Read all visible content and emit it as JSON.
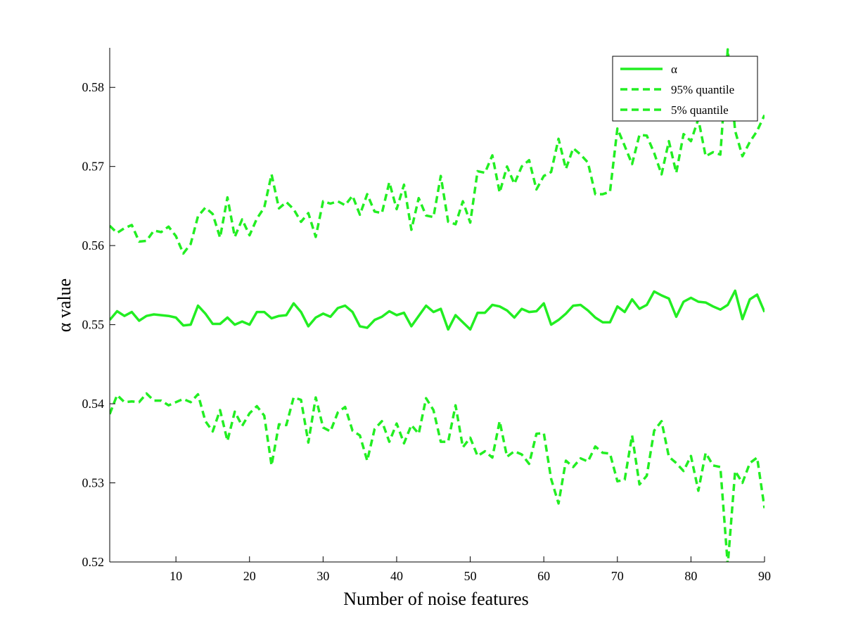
{
  "chart_data": {
    "type": "line",
    "xlabel": "Number of noise features",
    "ylabel": "α value",
    "xlim": [
      1,
      90
    ],
    "ylim": [
      0.52,
      0.585
    ],
    "xticks": [
      10,
      20,
      30,
      40,
      50,
      60,
      70,
      80,
      90
    ],
    "yticks": [
      0.52,
      0.53,
      0.54,
      0.55,
      0.56,
      0.57,
      0.58
    ],
    "grid": false,
    "legend_position": "top-right",
    "colors": {
      "series": "#22ee22"
    },
    "series": [
      {
        "name": "α",
        "style": "solid",
        "values": [
          0.5506,
          0.5517,
          0.5511,
          0.5516,
          0.5505,
          0.5511,
          0.5513,
          0.5512,
          0.5511,
          0.5509,
          0.5499,
          0.55,
          0.5524,
          0.5514,
          0.5501,
          0.5501,
          0.5509,
          0.55,
          0.5504,
          0.55,
          0.5516,
          0.5516,
          0.5508,
          0.5511,
          0.5512,
          0.5527,
          0.5516,
          0.5498,
          0.5509,
          0.5514,
          0.551,
          0.5521,
          0.5524,
          0.5516,
          0.5498,
          0.5496,
          0.5506,
          0.551,
          0.5517,
          0.5512,
          0.5515,
          0.5498,
          0.5511,
          0.5524,
          0.5516,
          0.552,
          0.5494,
          0.5512,
          0.5503,
          0.5494,
          0.5515,
          0.5515,
          0.5525,
          0.5523,
          0.5518,
          0.5509,
          0.552,
          0.5516,
          0.5517,
          0.5527,
          0.55,
          0.5506,
          0.5514,
          0.5524,
          0.5525,
          0.5518,
          0.5509,
          0.5503,
          0.5503,
          0.5523,
          0.5516,
          0.5532,
          0.552,
          0.5525,
          0.5542,
          0.5537,
          0.5533,
          0.551,
          0.5529,
          0.5534,
          0.5529,
          0.5528,
          0.5523,
          0.5519,
          0.5525,
          0.5543,
          0.5507,
          0.5532,
          0.5538,
          0.5516
        ]
      },
      {
        "name": "95% quantile",
        "style": "dashed",
        "values": [
          0.5625,
          0.5616,
          0.5622,
          0.5626,
          0.5605,
          0.5606,
          0.5619,
          0.5617,
          0.5624,
          0.5612,
          0.559,
          0.5602,
          0.5637,
          0.5648,
          0.564,
          0.561,
          0.5661,
          0.5611,
          0.5633,
          0.5613,
          0.5634,
          0.5648,
          0.569,
          0.5647,
          0.5655,
          0.5646,
          0.563,
          0.5641,
          0.5611,
          0.5656,
          0.5653,
          0.5656,
          0.5651,
          0.5663,
          0.5639,
          0.5665,
          0.5643,
          0.5641,
          0.568,
          0.5646,
          0.5677,
          0.562,
          0.566,
          0.5638,
          0.5636,
          0.5688,
          0.563,
          0.5627,
          0.5656,
          0.5629,
          0.5694,
          0.5692,
          0.5714,
          0.5667,
          0.57,
          0.5678,
          0.57,
          0.5708,
          0.5671,
          0.5688,
          0.5693,
          0.5735,
          0.5697,
          0.5723,
          0.5715,
          0.5705,
          0.5665,
          0.5665,
          0.5668,
          0.5748,
          0.5726,
          0.5703,
          0.574,
          0.5739,
          0.5717,
          0.569,
          0.5732,
          0.5692,
          0.5741,
          0.5732,
          0.576,
          0.5713,
          0.5718,
          0.5715,
          0.5848,
          0.5745,
          0.5713,
          0.5731,
          0.5745,
          0.5765
        ]
      },
      {
        "name": "5% quantile",
        "style": "dashed",
        "values": [
          0.5387,
          0.5411,
          0.5402,
          0.5403,
          0.5402,
          0.5413,
          0.5404,
          0.5404,
          0.5398,
          0.5402,
          0.5406,
          0.5402,
          0.5412,
          0.5378,
          0.5365,
          0.5392,
          0.5353,
          0.539,
          0.5372,
          0.5388,
          0.5397,
          0.5385,
          0.5322,
          0.5374,
          0.5373,
          0.5408,
          0.5405,
          0.5351,
          0.5408,
          0.537,
          0.5365,
          0.5389,
          0.5396,
          0.5366,
          0.536,
          0.5328,
          0.5368,
          0.5378,
          0.5352,
          0.5375,
          0.535,
          0.5373,
          0.5362,
          0.5407,
          0.5392,
          0.5352,
          0.5352,
          0.5398,
          0.5345,
          0.5357,
          0.5334,
          0.534,
          0.5332,
          0.5378,
          0.5333,
          0.534,
          0.5336,
          0.5324,
          0.5362,
          0.5363,
          0.5305,
          0.5274,
          0.5328,
          0.532,
          0.5331,
          0.5327,
          0.5346,
          0.5338,
          0.5337,
          0.5302,
          0.5304,
          0.536,
          0.5298,
          0.5309,
          0.5366,
          0.5378,
          0.5333,
          0.5325,
          0.5315,
          0.5334,
          0.529,
          0.5338,
          0.5322,
          0.532,
          0.5196,
          0.5315,
          0.53,
          0.5325,
          0.5332,
          0.5268
        ]
      }
    ]
  }
}
